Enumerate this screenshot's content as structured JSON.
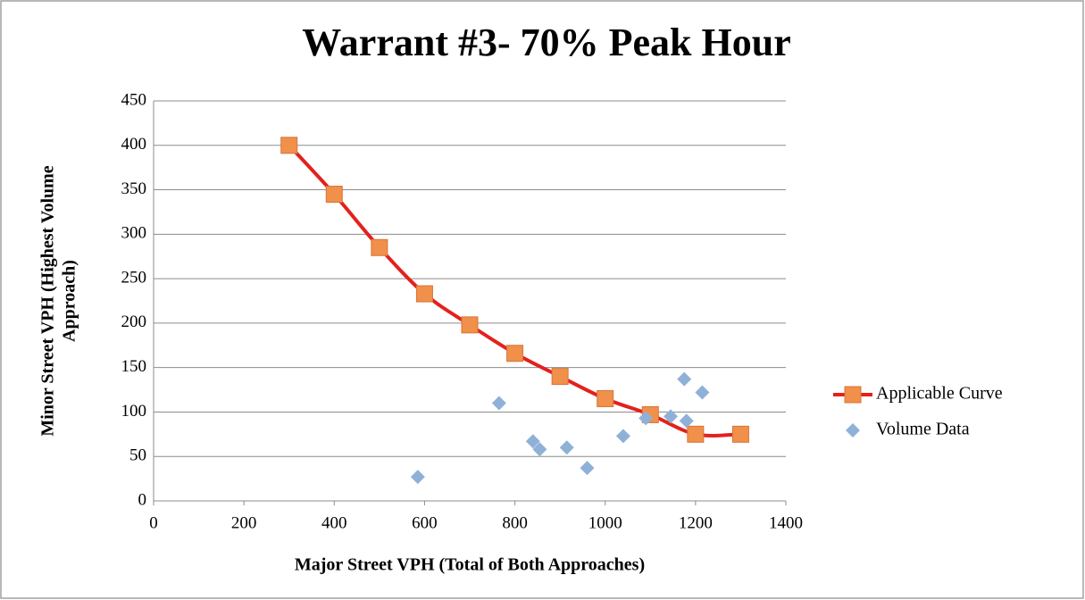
{
  "chart_data": {
    "type": "scatter",
    "title": "Warrant #3- 70% Peak Hour",
    "xlabel": "Major Street VPH (Total of Both Approaches)",
    "ylabel": [
      "Minor Street VPH (Highest Volume",
      "Approach)"
    ],
    "xlim": [
      0,
      1400
    ],
    "xticks": [
      0,
      200,
      400,
      600,
      800,
      1000,
      1200,
      1400
    ],
    "ylim": [
      0,
      450
    ],
    "yticks": [
      0,
      50,
      100,
      150,
      200,
      250,
      300,
      350,
      400,
      450
    ],
    "grid": true,
    "legend": "right",
    "series": [
      {
        "name": "Applicable Curve",
        "color": "#e3211c",
        "marker_color": "#f0904a",
        "line": true,
        "smooth": true,
        "marker": "square",
        "x": [
          300,
          400,
          500,
          600,
          700,
          800,
          900,
          1000,
          1100,
          1200,
          1300
        ],
        "values": [
          400,
          345,
          285,
          233,
          198,
          166,
          140,
          115,
          97,
          75,
          75
        ]
      },
      {
        "name": "Volume Data",
        "color": "#8fb1d8",
        "line": false,
        "marker": "diamond",
        "x": [
          585,
          765,
          840,
          855,
          915,
          960,
          1040,
          1090,
          1145,
          1180,
          1175,
          1215
        ],
        "values": [
          27,
          110,
          67,
          58,
          60,
          37,
          73,
          93,
          95,
          90,
          137,
          122
        ]
      }
    ]
  }
}
